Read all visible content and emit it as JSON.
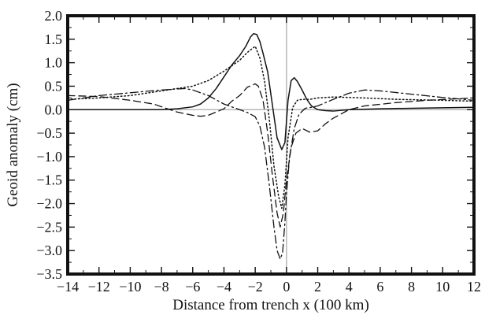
{
  "chart_data": {
    "type": "line",
    "title": "",
    "xlabel": "Distance from trench x (100 km)",
    "ylabel": "Geoid anomaly (cm)",
    "xlim": [
      -14,
      12
    ],
    "ylim": [
      -3.5,
      2.0
    ],
    "xticks": [
      -14,
      -12,
      -10,
      -8,
      -6,
      -4,
      -2,
      0,
      2,
      4,
      6,
      8,
      10,
      12
    ],
    "yticks": [
      -3.5,
      -3.0,
      -2.5,
      -2.0,
      -1.5,
      -1.0,
      -0.5,
      0.0,
      0.5,
      1.0,
      1.5,
      2.0
    ],
    "xtick_labels": [
      "−14",
      "−12",
      "−10",
      "−8",
      "−6",
      "−4",
      "−2",
      "0",
      "2",
      "4",
      "6",
      "8",
      "10",
      "12"
    ],
    "ytick_labels": [
      "−3.5",
      "−3.0",
      "−2.5",
      "−2.0",
      "−1.5",
      "−1.0",
      "−0.5",
      "0.0",
      "0.5",
      "1.0",
      "1.5",
      "2.0"
    ],
    "reference_lines": {
      "x": 0,
      "y": 0,
      "color": "#b8b8b8"
    },
    "grid": false,
    "legend": "none",
    "series": [
      {
        "style": "solid",
        "x": [
          -14,
          -10,
          -8,
          -7,
          -6,
          -5.5,
          -5,
          -4.5,
          -4,
          -3.5,
          -3,
          -2.6,
          -2.3,
          -2.1,
          -1.9,
          -1.7,
          -1.5,
          -1.2,
          -0.9,
          -0.6,
          -0.3,
          -0.1,
          0.1,
          0.3,
          0.5,
          0.7,
          1.0,
          1.3,
          1.6,
          2.0,
          2.5,
          3,
          4,
          6,
          8,
          12
        ],
        "y": [
          0.0,
          0.0,
          0.0,
          0.02,
          0.06,
          0.12,
          0.25,
          0.45,
          0.7,
          0.95,
          1.15,
          1.35,
          1.55,
          1.62,
          1.6,
          1.45,
          1.2,
          0.8,
          0.1,
          -0.6,
          -0.85,
          -0.7,
          0.2,
          0.62,
          0.68,
          0.6,
          0.42,
          0.22,
          0.08,
          0.0,
          -0.02,
          -0.03,
          0.0,
          0.02,
          0.03,
          0.05
        ]
      },
      {
        "style": "dotted",
        "x": [
          -14,
          -12,
          -10,
          -8,
          -6,
          -5,
          -4,
          -3,
          -2.5,
          -2,
          -1.7,
          -1.4,
          -1.1,
          -0.8,
          -0.5,
          -0.3,
          -0.1,
          0.1,
          0.4,
          0.7,
          1.0,
          1.5,
          2,
          3,
          5,
          7,
          10,
          12
        ],
        "y": [
          0.22,
          0.25,
          0.3,
          0.4,
          0.5,
          0.62,
          0.82,
          1.05,
          1.22,
          1.35,
          1.1,
          0.6,
          -0.2,
          -1.2,
          -1.85,
          -2.1,
          -1.6,
          -0.6,
          0.05,
          0.2,
          0.22,
          0.22,
          0.25,
          0.27,
          0.25,
          0.22,
          0.2,
          0.18
        ]
      },
      {
        "style": "dashed",
        "x": [
          -14,
          -12,
          -10,
          -8.5,
          -7,
          -6,
          -5.5,
          -5,
          -4,
          -3.5,
          -3,
          -2.5,
          -2,
          -1.8,
          -1.5,
          -1.2,
          -0.9,
          -0.6,
          -0.4,
          -0.2,
          0,
          0.3,
          0.6,
          1.0,
          1.5,
          2,
          2.5,
          3,
          4,
          5,
          7,
          9,
          12
        ],
        "y": [
          0.3,
          0.28,
          0.2,
          0.12,
          -0.05,
          -0.12,
          -0.14,
          -0.12,
          0.02,
          0.18,
          0.3,
          0.48,
          0.55,
          0.5,
          0.2,
          -0.5,
          -1.4,
          -2.2,
          -2.5,
          -2.2,
          -1.5,
          -0.8,
          -0.5,
          -0.4,
          -0.48,
          -0.45,
          -0.3,
          -0.18,
          0.0,
          0.08,
          0.15,
          0.2,
          0.25
        ]
      },
      {
        "style": "dashdot",
        "x": [
          -14,
          -12,
          -10,
          -8,
          -6.5,
          -6,
          -5,
          -4,
          -3,
          -2.5,
          -2,
          -1.7,
          -1.4,
          -1.1,
          -0.8,
          -0.6,
          -0.4,
          -0.25,
          -0.1,
          0,
          0.2,
          0.5,
          0.8,
          1.2,
          1.6,
          2,
          3,
          4,
          5,
          6,
          8,
          10,
          12
        ],
        "y": [
          0.2,
          0.3,
          0.36,
          0.42,
          0.45,
          0.42,
          0.3,
          0.12,
          0.0,
          -0.06,
          -0.15,
          -0.35,
          -0.8,
          -1.6,
          -2.5,
          -3.0,
          -3.18,
          -3.05,
          -2.4,
          -1.8,
          -1.0,
          -0.4,
          -0.1,
          0.03,
          0.05,
          0.08,
          0.22,
          0.35,
          0.42,
          0.4,
          0.33,
          0.26,
          0.2
        ]
      }
    ]
  }
}
